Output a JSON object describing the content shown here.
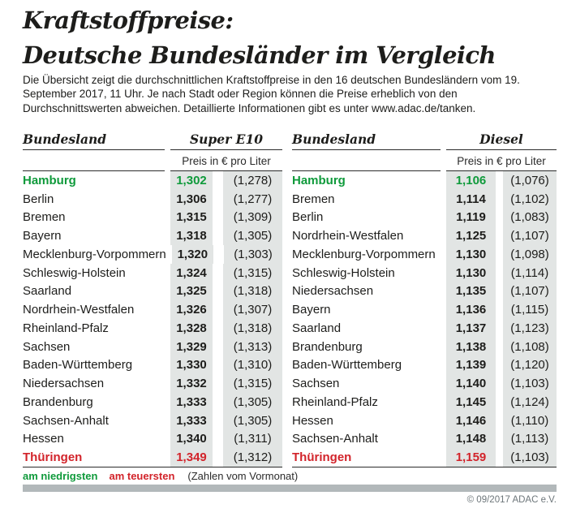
{
  "title": {
    "line1": "Kraftstoffpreise:",
    "line2": "Deutsche Bundesländer im Vergleich"
  },
  "intro": "Die Übersicht zeigt die durchschnittlichen Kraftstoffpreise in den 16 deutschen Bundesländern vom 19. September 2017, 11 Uhr. Je nach Stadt oder Region können die Preise erheblich von den Durchschnittswerten abweichen. Detaillierte Informationen gibt es unter www.adac.de/tanken.",
  "tables": [
    {
      "id": "super-e10",
      "bundesland_label": "Bundesland",
      "fuel_label": "Super E10",
      "unit_label": "Preis in € pro Liter",
      "rows": [
        {
          "name": "Hamburg",
          "price": "1,302",
          "prev": "(1,278)",
          "highlight": "lowest"
        },
        {
          "name": "Berlin",
          "price": "1,306",
          "prev": "(1,277)",
          "highlight": ""
        },
        {
          "name": "Bremen",
          "price": "1,315",
          "prev": "(1,309)",
          "highlight": ""
        },
        {
          "name": "Bayern",
          "price": "1,318",
          "prev": "(1,305)",
          "highlight": ""
        },
        {
          "name": "Mecklenburg-Vorpommern",
          "price": "1,320",
          "prev": "(1,303)",
          "highlight": ""
        },
        {
          "name": "Schleswig-Holstein",
          "price": "1,324",
          "prev": "(1,315)",
          "highlight": ""
        },
        {
          "name": "Saarland",
          "price": "1,325",
          "prev": "(1,318)",
          "highlight": ""
        },
        {
          "name": "Nordrhein-Westfalen",
          "price": "1,326",
          "prev": "(1,307)",
          "highlight": ""
        },
        {
          "name": "Rheinland-Pfalz",
          "price": "1,328",
          "prev": "(1,318)",
          "highlight": ""
        },
        {
          "name": "Sachsen",
          "price": "1,329",
          "prev": "(1,313)",
          "highlight": ""
        },
        {
          "name": "Baden-Württemberg",
          "price": "1,330",
          "prev": "(1,310)",
          "highlight": ""
        },
        {
          "name": "Niedersachsen",
          "price": "1,332",
          "prev": "(1,315)",
          "highlight": ""
        },
        {
          "name": "Brandenburg",
          "price": "1,333",
          "prev": "(1,305)",
          "highlight": ""
        },
        {
          "name": "Sachsen-Anhalt",
          "price": "1,333",
          "prev": "(1,305)",
          "highlight": ""
        },
        {
          "name": "Hessen",
          "price": "1,340",
          "prev": "(1,311)",
          "highlight": ""
        },
        {
          "name": "Thüringen",
          "price": "1,349",
          "prev": "(1,312)",
          "highlight": "highest"
        }
      ]
    },
    {
      "id": "diesel",
      "bundesland_label": "Bundesland",
      "fuel_label": "Diesel",
      "unit_label": "Preis in € pro Liter",
      "rows": [
        {
          "name": "Hamburg",
          "price": "1,106",
          "prev": "(1,076)",
          "highlight": "lowest"
        },
        {
          "name": "Bremen",
          "price": "1,114",
          "prev": "(1,102)",
          "highlight": ""
        },
        {
          "name": "Berlin",
          "price": "1,119",
          "prev": "(1,083)",
          "highlight": ""
        },
        {
          "name": "Nordrhein-Westfalen",
          "price": "1,125",
          "prev": "(1,107)",
          "highlight": ""
        },
        {
          "name": "Mecklenburg-Vorpommern",
          "price": "1,130",
          "prev": "(1,098)",
          "highlight": ""
        },
        {
          "name": "Schleswig-Holstein",
          "price": "1,130",
          "prev": "(1,114)",
          "highlight": ""
        },
        {
          "name": "Niedersachsen",
          "price": "1,135",
          "prev": "(1,107)",
          "highlight": ""
        },
        {
          "name": "Bayern",
          "price": "1,136",
          "prev": "(1,115)",
          "highlight": ""
        },
        {
          "name": "Saarland",
          "price": "1,137",
          "prev": "(1,123)",
          "highlight": ""
        },
        {
          "name": "Brandenburg",
          "price": "1,138",
          "prev": "(1,108)",
          "highlight": ""
        },
        {
          "name": "Baden-Württemberg",
          "price": "1,139",
          "prev": "(1,120)",
          "highlight": ""
        },
        {
          "name": "Sachsen",
          "price": "1,140",
          "prev": "(1,103)",
          "highlight": ""
        },
        {
          "name": "Rheinland-Pfalz",
          "price": "1,145",
          "prev": "(1,124)",
          "highlight": ""
        },
        {
          "name": "Hessen",
          "price": "1,146",
          "prev": "(1,110)",
          "highlight": ""
        },
        {
          "name": "Sachsen-Anhalt",
          "price": "1,148",
          "prev": "(1,113)",
          "highlight": ""
        },
        {
          "name": "Thüringen",
          "price": "1,159",
          "prev": "(1,103)",
          "highlight": "highest"
        }
      ]
    }
  ],
  "legend": {
    "lowest": "am niedrigsten",
    "highest": "am teuersten",
    "note": "(Zahlen vom Vormonat)"
  },
  "copyright": "© 09/2017 ADAC e.V.",
  "colors": {
    "lowest": "#0f9a3b",
    "highest": "#d2232a",
    "cell_bg": "#e2e5e4",
    "bar": "#b2b8ba"
  },
  "chart_data": [
    {
      "type": "table",
      "title": "Super E10",
      "unit": "Preis in € pro Liter",
      "columns": [
        "Bundesland",
        "Preis",
        "Vormonat"
      ],
      "rows": [
        [
          "Hamburg",
          1.302,
          1.278
        ],
        [
          "Berlin",
          1.306,
          1.277
        ],
        [
          "Bremen",
          1.315,
          1.309
        ],
        [
          "Bayern",
          1.318,
          1.305
        ],
        [
          "Mecklenburg-Vorpommern",
          1.32,
          1.303
        ],
        [
          "Schleswig-Holstein",
          1.324,
          1.315
        ],
        [
          "Saarland",
          1.325,
          1.318
        ],
        [
          "Nordrhein-Westfalen",
          1.326,
          1.307
        ],
        [
          "Rheinland-Pfalz",
          1.328,
          1.318
        ],
        [
          "Sachsen",
          1.329,
          1.313
        ],
        [
          "Baden-Württemberg",
          1.33,
          1.31
        ],
        [
          "Niedersachsen",
          1.332,
          1.315
        ],
        [
          "Brandenburg",
          1.333,
          1.305
        ],
        [
          "Sachsen-Anhalt",
          1.333,
          1.305
        ],
        [
          "Hessen",
          1.34,
          1.311
        ],
        [
          "Thüringen",
          1.349,
          1.312
        ]
      ],
      "lowest": "Hamburg",
      "highest": "Thüringen"
    },
    {
      "type": "table",
      "title": "Diesel",
      "unit": "Preis in € pro Liter",
      "columns": [
        "Bundesland",
        "Preis",
        "Vormonat"
      ],
      "rows": [
        [
          "Hamburg",
          1.106,
          1.076
        ],
        [
          "Bremen",
          1.114,
          1.102
        ],
        [
          "Berlin",
          1.119,
          1.083
        ],
        [
          "Nordrhein-Westfalen",
          1.125,
          1.107
        ],
        [
          "Mecklenburg-Vorpommern",
          1.13,
          1.098
        ],
        [
          "Schleswig-Holstein",
          1.13,
          1.114
        ],
        [
          "Niedersachsen",
          1.135,
          1.107
        ],
        [
          "Bayern",
          1.136,
          1.115
        ],
        [
          "Saarland",
          1.137,
          1.123
        ],
        [
          "Brandenburg",
          1.138,
          1.108
        ],
        [
          "Baden-Württemberg",
          1.139,
          1.12
        ],
        [
          "Sachsen",
          1.14,
          1.103
        ],
        [
          "Rheinland-Pfalz",
          1.145,
          1.124
        ],
        [
          "Hessen",
          1.146,
          1.11
        ],
        [
          "Sachsen-Anhalt",
          1.148,
          1.113
        ],
        [
          "Thüringen",
          1.159,
          1.103
        ]
      ],
      "lowest": "Hamburg",
      "highest": "Thüringen"
    }
  ]
}
